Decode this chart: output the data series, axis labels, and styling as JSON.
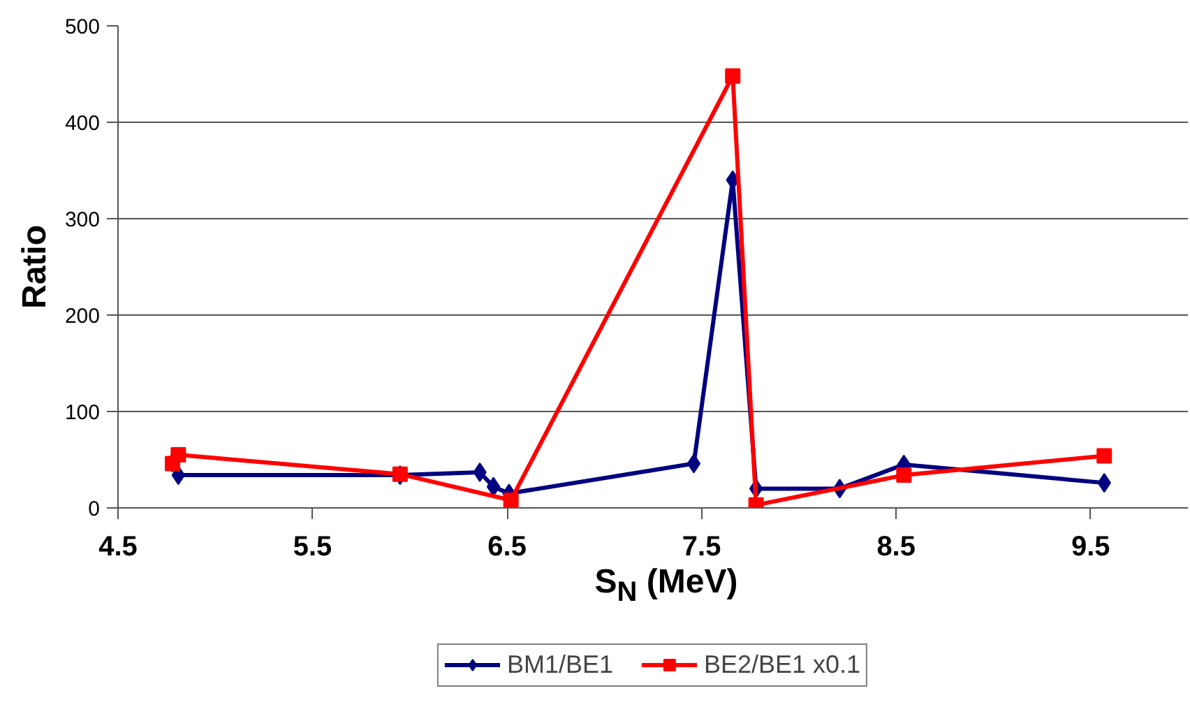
{
  "chart_data": {
    "type": "line",
    "xlabel": "S$_{N}$ (MeV)",
    "ylabel": "Ratio",
    "xlim": [
      4.5,
      10
    ],
    "xticks": [
      4.5,
      5.5,
      6.5,
      7.5,
      8.5,
      9.5
    ],
    "ylim": [
      0,
      500
    ],
    "yticks": [
      0,
      100,
      200,
      300,
      400,
      500
    ],
    "grid": "y",
    "legend": "bottom",
    "series": [
      {
        "name": "BM1/BE1",
        "color": "#000080",
        "marker": "diamond",
        "x": [
          4.78,
          4.81,
          5.95,
          6.36,
          6.43,
          6.51,
          7.46,
          7.66,
          7.78,
          8.21,
          8.54,
          9.57
        ],
        "values": [
          47,
          34,
          34,
          37,
          22,
          15,
          46,
          340,
          20,
          20,
          45,
          26
        ]
      },
      {
        "name": "BE2/BE1 x0.1",
        "color": "#ff0000",
        "marker": "square",
        "x": [
          4.78,
          4.81,
          5.95,
          6.52,
          7.66,
          7.78,
          8.54,
          9.57
        ],
        "values": [
          46,
          55,
          35,
          8,
          448,
          3,
          34,
          54
        ]
      }
    ]
  }
}
